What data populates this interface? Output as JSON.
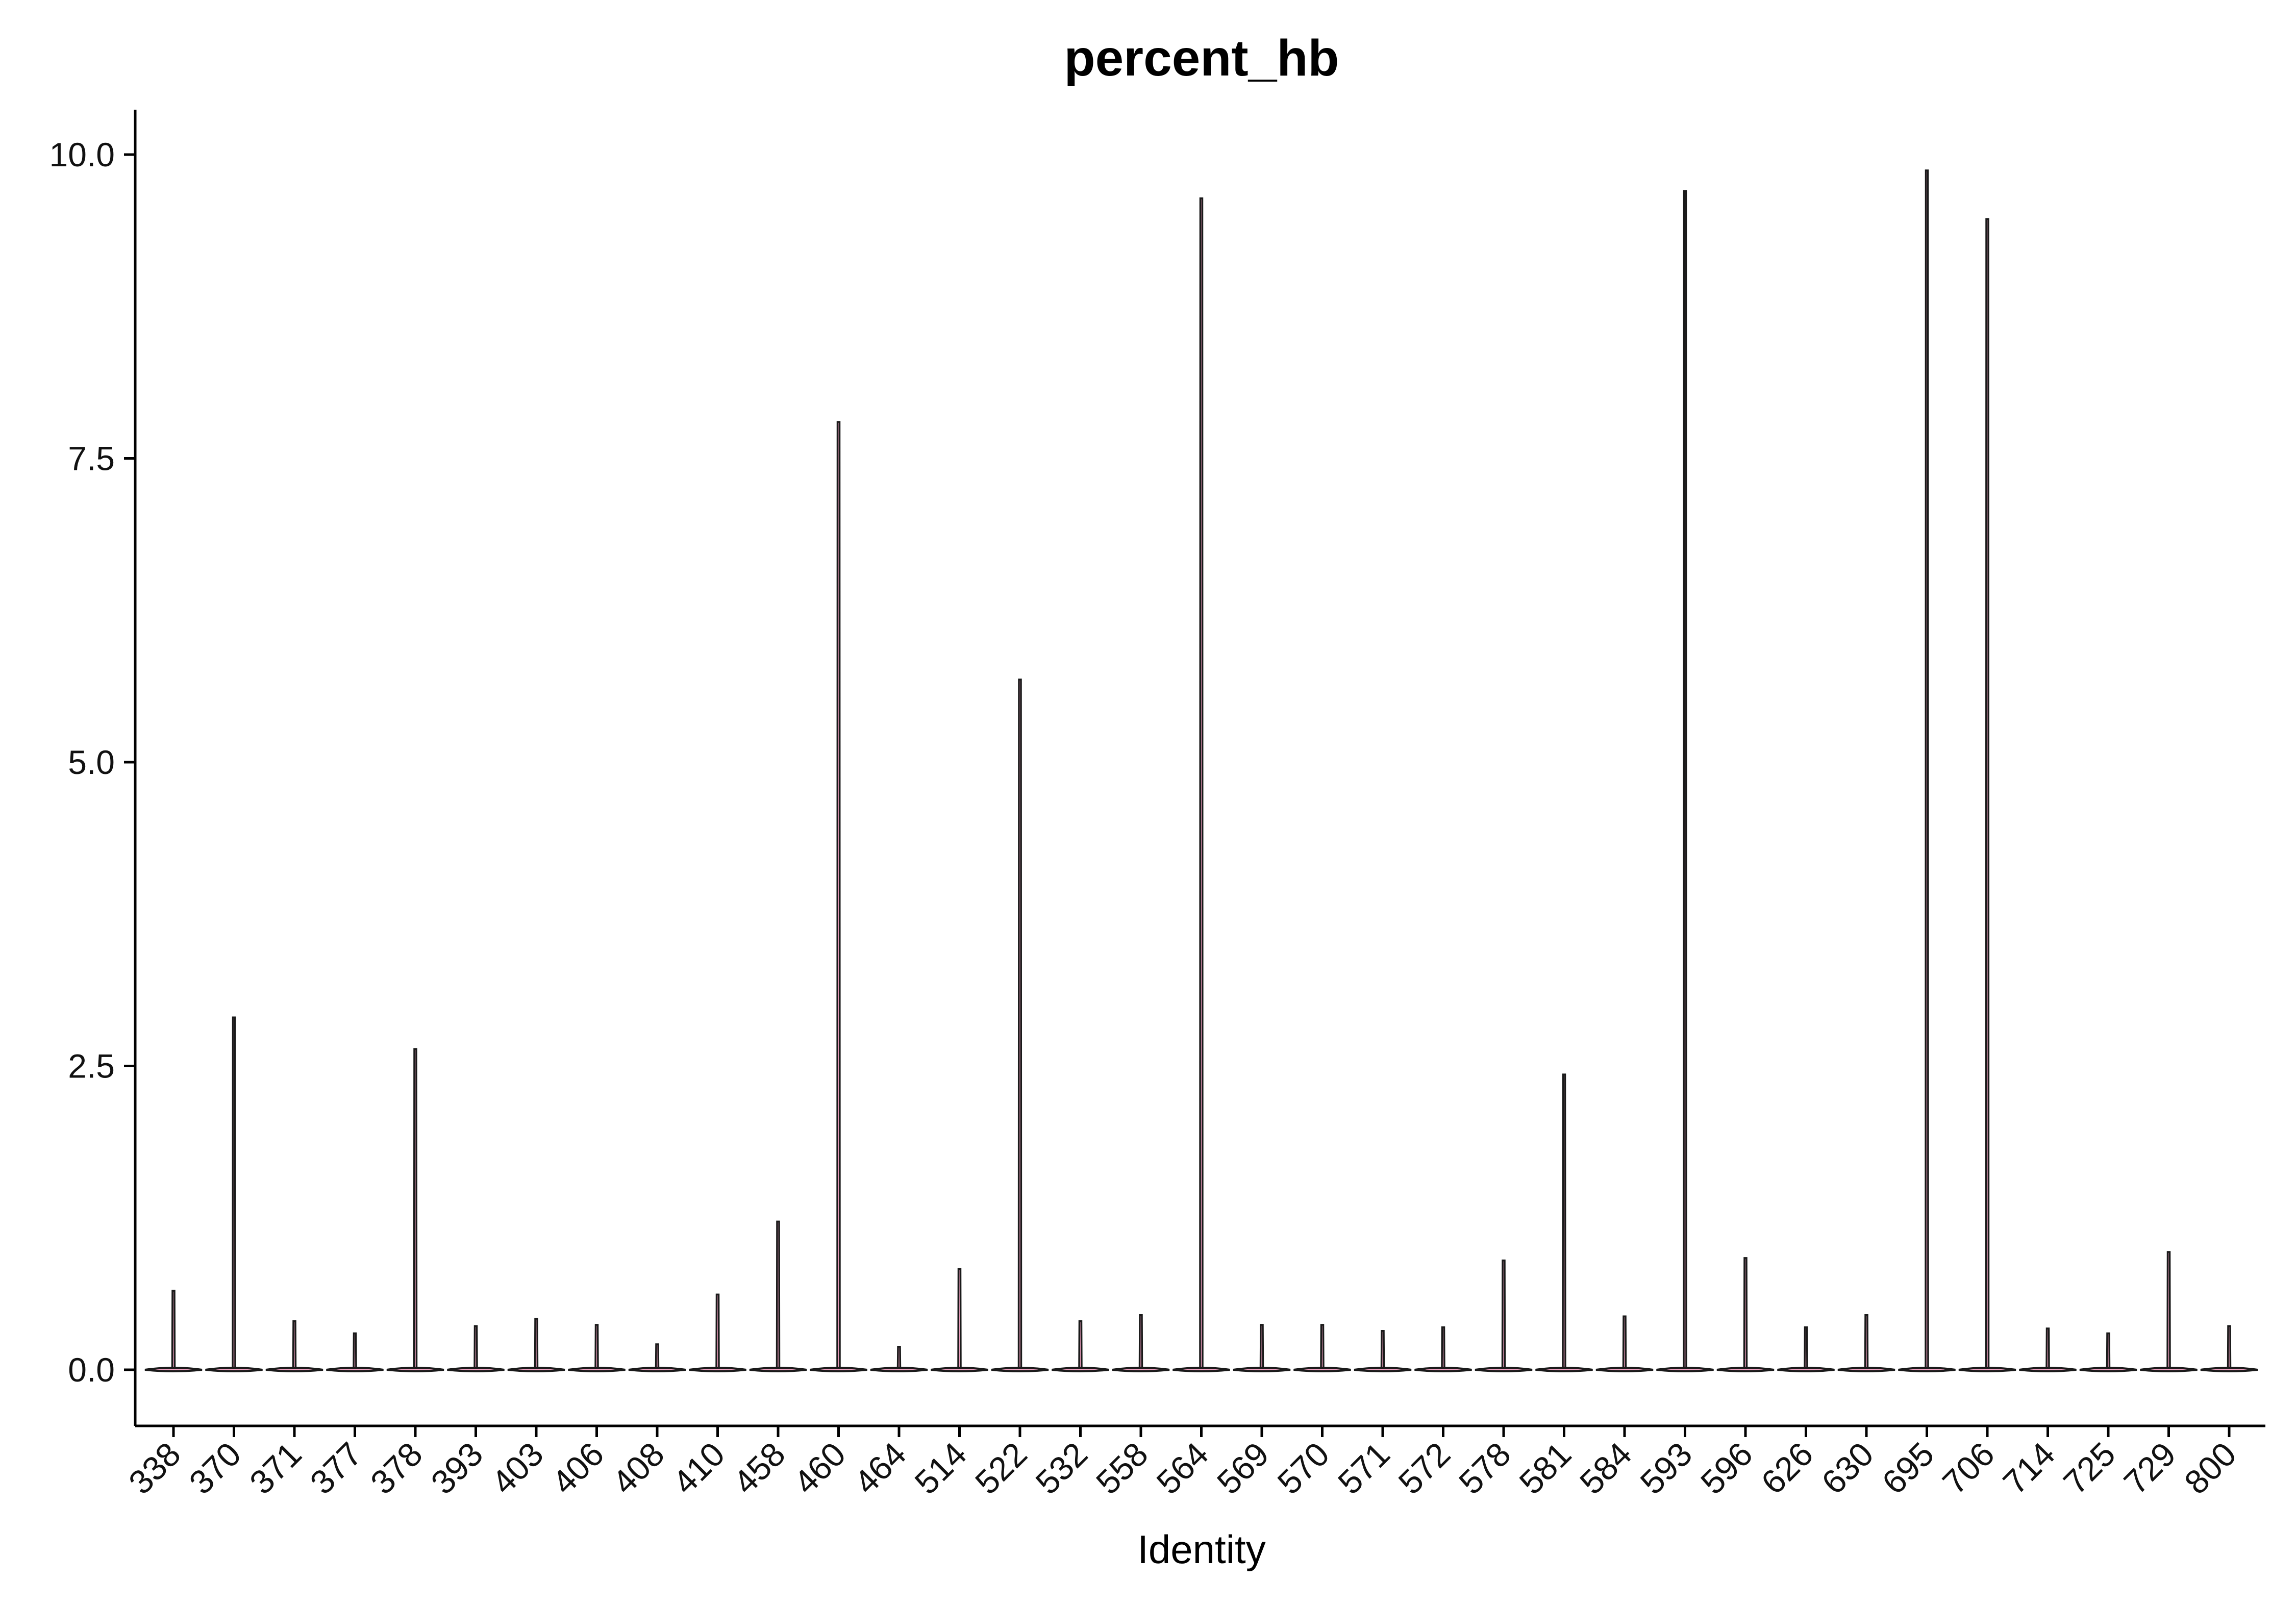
{
  "chart_data": {
    "type": "violin",
    "title": "percent_hb",
    "xlabel": "Identity",
    "ylabel": "",
    "ylim": [
      -0.5,
      10.35
    ],
    "y_ticks": [
      "0.0",
      "2.5",
      "5.0",
      "7.5",
      "10.0"
    ],
    "y_tick_values": [
      0,
      2.5,
      5,
      7.5,
      10
    ],
    "grid": false,
    "legend": "none",
    "categories": [
      "338",
      "370",
      "371",
      "377",
      "378",
      "393",
      "403",
      "406",
      "408",
      "410",
      "458",
      "460",
      "464",
      "514",
      "522",
      "532",
      "558",
      "564",
      "569",
      "570",
      "571",
      "572",
      "578",
      "581",
      "584",
      "593",
      "596",
      "626",
      "630",
      "695",
      "706",
      "714",
      "725",
      "729",
      "800"
    ],
    "max_values": [
      0.65,
      2.9,
      0.4,
      0.3,
      2.64,
      0.36,
      0.42,
      0.37,
      0.21,
      0.62,
      1.22,
      7.8,
      0.19,
      0.83,
      5.68,
      0.4,
      0.45,
      9.64,
      0.37,
      0.37,
      0.32,
      0.35,
      0.9,
      2.43,
      0.44,
      9.7,
      0.92,
      0.35,
      0.45,
      9.87,
      9.47,
      0.34,
      0.3,
      0.97,
      0.36
    ],
    "fill_color": "#f4a3c4",
    "line_color": "#1a1a1a"
  }
}
